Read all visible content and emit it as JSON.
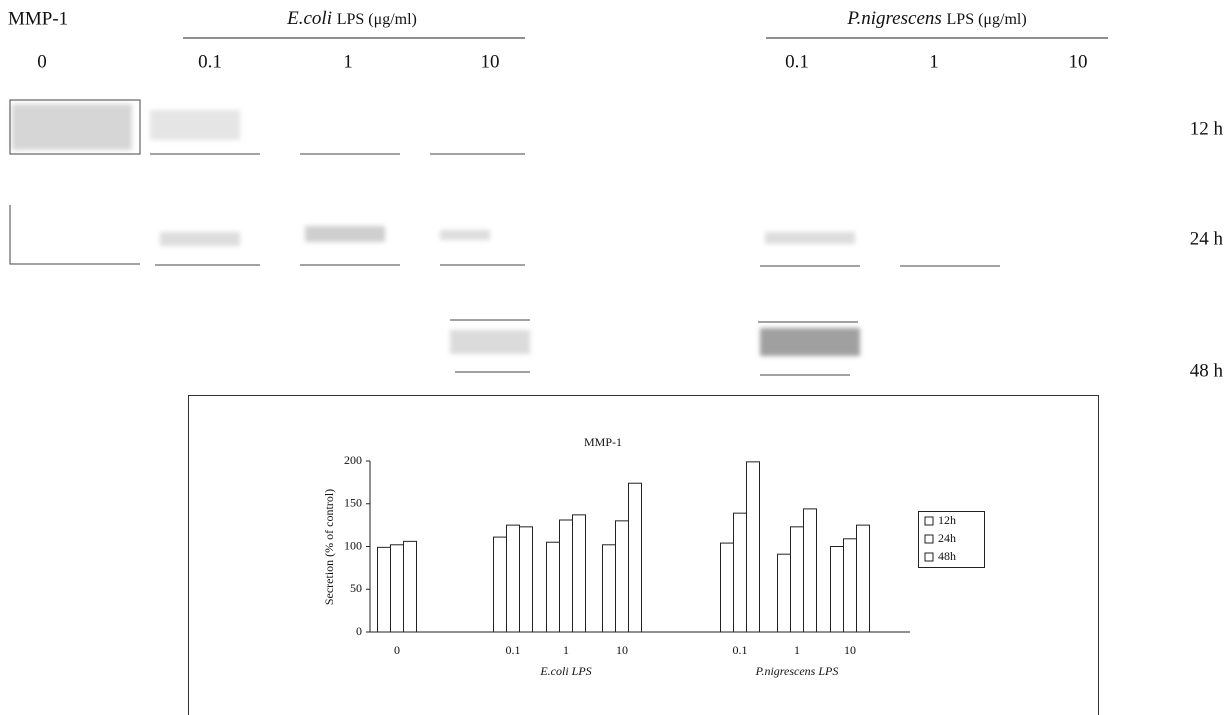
{
  "blot": {
    "label": "MMP-1",
    "groups": [
      {
        "name": "E.coli",
        "unit": "LPS (μg/ml)"
      },
      {
        "name": "P.nigrescens",
        "unit": "LPS (μg/ml)"
      }
    ],
    "lanes": [
      "0",
      "0.1",
      "1",
      "10",
      "0.1",
      "1",
      "10"
    ],
    "times": [
      "12 h",
      "24 h",
      "48 h"
    ]
  },
  "chart_data": {
    "type": "bar",
    "title": "MMP-1",
    "y_label": "Secretion (% of control)",
    "categories": [
      "0",
      "0.1",
      "1",
      "10",
      "0.1",
      "1",
      "10"
    ],
    "group_labels": [
      "E.coli LPS",
      "P.nigrescens LPS"
    ],
    "ylim": [
      0,
      200
    ],
    "yticks": [
      0,
      50,
      100,
      150,
      200
    ],
    "legend": "right",
    "series": [
      {
        "name": "12h",
        "color": "#ffffff",
        "values": [
          99,
          111,
          105,
          102,
          104,
          91,
          100
        ]
      },
      {
        "name": "24h",
        "color": "#ffffff",
        "values": [
          102,
          125,
          131,
          130,
          139,
          123,
          109
        ]
      },
      {
        "name": "48h",
        "color": "#ffffff",
        "values": [
          106,
          123,
          137,
          174,
          199,
          144,
          125
        ]
      }
    ]
  }
}
